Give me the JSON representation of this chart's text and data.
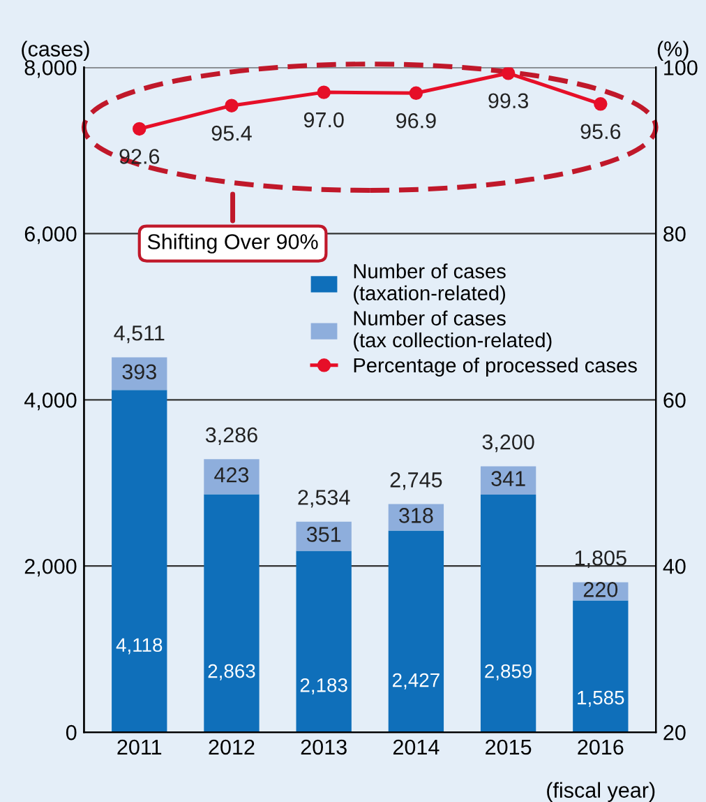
{
  "chart_data": {
    "type": "bar",
    "stacked": true,
    "categories": [
      "2011",
      "2012",
      "2013",
      "2014",
      "2015",
      "2016"
    ],
    "series": [
      {
        "name": "Number of cases\n(taxation-related)",
        "color": "#0f6fba",
        "values": [
          4118,
          2863,
          2183,
          2427,
          2859,
          1585
        ],
        "value_labels": [
          "4,118",
          "2,863",
          "2,183",
          "2,427",
          "2,859",
          "1,585"
        ]
      },
      {
        "name": "Number of cases\n(tax collection-related)",
        "color": "#8eaedc",
        "values": [
          393,
          423,
          351,
          318,
          341,
          220
        ],
        "value_labels": [
          "393",
          "423",
          "351",
          "318",
          "341",
          "220"
        ]
      },
      {
        "name": "Percentage of processed cases",
        "type": "line",
        "axis": "y2",
        "color": "#e60f28",
        "marker": "circle",
        "values": [
          92.6,
          95.4,
          97.0,
          96.9,
          99.3,
          95.6
        ],
        "value_labels": [
          "92.6",
          "95.4",
          "97.0",
          "96.9",
          "99.3",
          "95.6"
        ]
      }
    ],
    "totals": [
      "4,511",
      "3,286",
      "2,534",
      "2,745",
      "3,200",
      "1,805"
    ],
    "ylim": [
      0,
      8000
    ],
    "yticks": [
      0,
      {
        "value": 2000,
        "label": "2,000"
      },
      {
        "value": 4000,
        "label": "4,000"
      },
      {
        "value": 6000,
        "label": "6,000"
      },
      {
        "value": 8000,
        "label": "8,000"
      }
    ],
    "y2lim": [
      20,
      100
    ],
    "y2ticks": [
      20,
      40,
      60,
      80,
      100
    ],
    "ylabel": "(cases)",
    "y2label": "(%)",
    "xlabel": "(fiscal year)",
    "annotations": [
      "Shifting Over 90%"
    ],
    "grid": "y",
    "legend": "right"
  }
}
